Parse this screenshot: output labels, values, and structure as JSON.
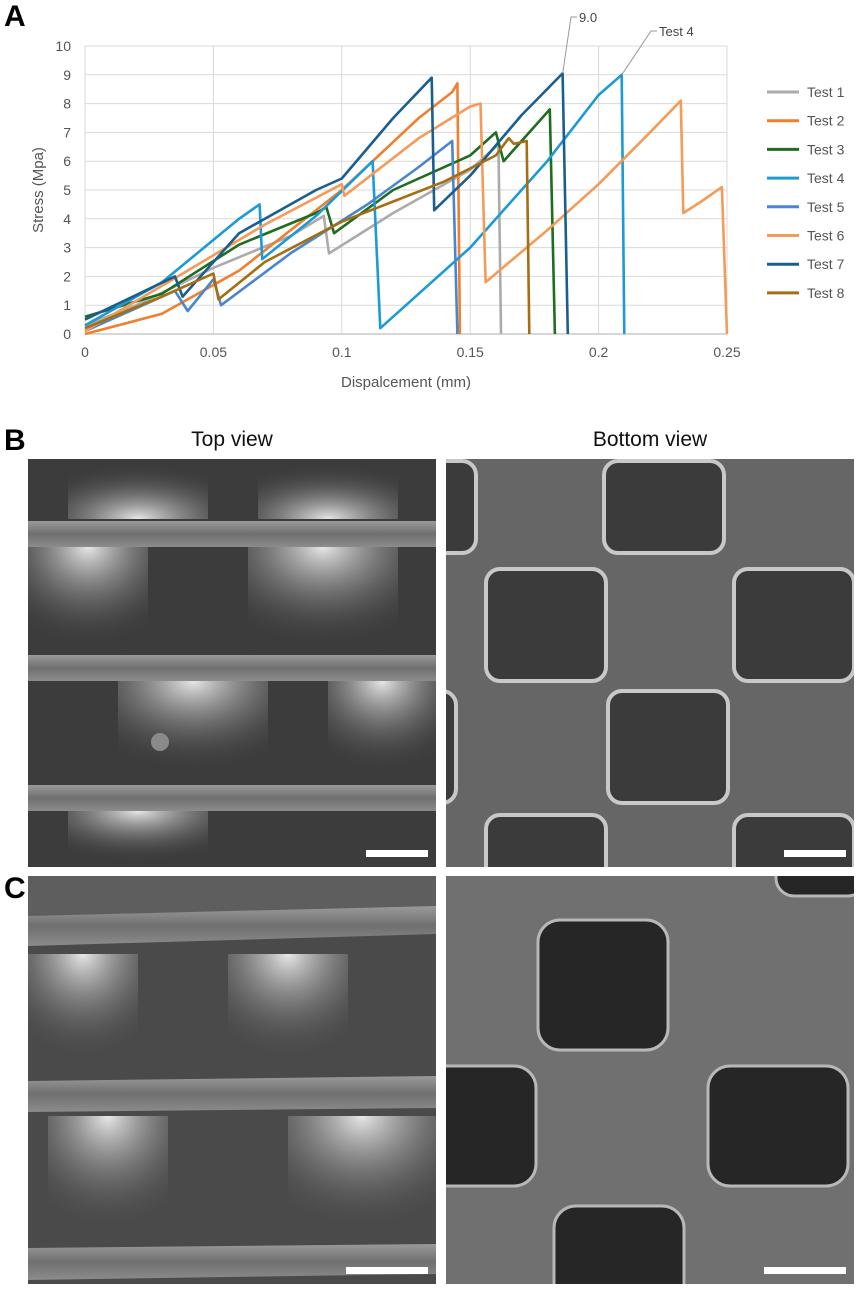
{
  "panels": {
    "a": "A",
    "b": "B",
    "c": "C"
  },
  "views": {
    "top": "Top view",
    "bottom": "Bottom view"
  },
  "chart_data": {
    "type": "line",
    "xlabel": "Dispalcement (mm)",
    "ylabel": "Stress (Mpa)",
    "xlim": [
      0,
      0.25
    ],
    "ylim": [
      0,
      10
    ],
    "xticks": [
      0,
      0.05,
      0.1,
      0.15,
      0.2,
      0.25
    ],
    "xtick_labels": [
      "0",
      "0.05",
      "0.1",
      "0.15",
      "0.2",
      "0.25"
    ],
    "yticks": [
      0,
      1,
      2,
      3,
      4,
      5,
      6,
      7,
      8,
      9,
      10
    ],
    "ytick_labels": [
      "0",
      "1",
      "2",
      "3",
      "4",
      "5",
      "6",
      "7",
      "8",
      "9",
      "10"
    ],
    "grid": true,
    "legend_position": "right",
    "annotations": [
      {
        "text": "9.0",
        "x": 0.186,
        "y": 9.05
      },
      {
        "text": "Test 4",
        "x": 0.209,
        "y": 9.0
      }
    ],
    "series": [
      {
        "name": "Test 1",
        "color": "#ababab",
        "points": [
          [
            0,
            0.3
          ],
          [
            0.02,
            1.0
          ],
          [
            0.05,
            2.3
          ],
          [
            0.08,
            3.4
          ],
          [
            0.093,
            4.1
          ],
          [
            0.095,
            2.8
          ],
          [
            0.12,
            4.2
          ],
          [
            0.15,
            5.7
          ],
          [
            0.16,
            6.5
          ],
          [
            0.161,
            6.7
          ],
          [
            0.162,
            0
          ]
        ]
      },
      {
        "name": "Test 2",
        "color": "#f07f2f",
        "points": [
          [
            0,
            0
          ],
          [
            0.03,
            0.7
          ],
          [
            0.06,
            2.2
          ],
          [
            0.1,
            5.0
          ],
          [
            0.13,
            7.5
          ],
          [
            0.143,
            8.4
          ],
          [
            0.145,
            8.7
          ],
          [
            0.146,
            0
          ]
        ]
      },
      {
        "name": "Test 3",
        "color": "#1f6d1f",
        "points": [
          [
            0,
            0.6
          ],
          [
            0.03,
            1.4
          ],
          [
            0.06,
            3.1
          ],
          [
            0.09,
            4.2
          ],
          [
            0.094,
            4.4
          ],
          [
            0.097,
            3.5
          ],
          [
            0.12,
            5.0
          ],
          [
            0.15,
            6.2
          ],
          [
            0.16,
            7.0
          ],
          [
            0.163,
            6.0
          ],
          [
            0.175,
            7.2
          ],
          [
            0.181,
            7.8
          ],
          [
            0.183,
            0
          ]
        ]
      },
      {
        "name": "Test 4",
        "color": "#1d9ad6",
        "points": [
          [
            0,
            0.3
          ],
          [
            0.03,
            1.8
          ],
          [
            0.06,
            4.0
          ],
          [
            0.068,
            4.5
          ],
          [
            0.069,
            2.6
          ],
          [
            0.09,
            4.1
          ],
          [
            0.112,
            6.0
          ],
          [
            0.115,
            0.2
          ],
          [
            0.15,
            3.0
          ],
          [
            0.18,
            6.0
          ],
          [
            0.2,
            8.3
          ],
          [
            0.209,
            9.0
          ],
          [
            0.21,
            0
          ]
        ]
      },
      {
        "name": "Test 5",
        "color": "#4a86d0",
        "points": [
          [
            0,
            0.1
          ],
          [
            0.035,
            1.5
          ],
          [
            0.04,
            0.8
          ],
          [
            0.05,
            1.9
          ],
          [
            0.053,
            1.0
          ],
          [
            0.08,
            2.8
          ],
          [
            0.11,
            4.5
          ],
          [
            0.13,
            5.8
          ],
          [
            0.143,
            6.7
          ],
          [
            0.145,
            0
          ]
        ]
      },
      {
        "name": "Test 6",
        "color": "#f59a57",
        "points": [
          [
            0,
            0.1
          ],
          [
            0.04,
            2.2
          ],
          [
            0.07,
            3.8
          ],
          [
            0.1,
            5.2
          ],
          [
            0.101,
            4.8
          ],
          [
            0.13,
            6.8
          ],
          [
            0.15,
            7.9
          ],
          [
            0.154,
            8.0
          ],
          [
            0.156,
            1.8
          ],
          [
            0.18,
            3.6
          ],
          [
            0.2,
            5.2
          ],
          [
            0.22,
            7.0
          ],
          [
            0.232,
            8.1
          ],
          [
            0.233,
            4.2
          ],
          [
            0.24,
            4.6
          ],
          [
            0.248,
            5.1
          ],
          [
            0.25,
            0
          ]
        ]
      },
      {
        "name": "Test 7",
        "color": "#1a5e8e",
        "points": [
          [
            0,
            0.5
          ],
          [
            0.035,
            2.0
          ],
          [
            0.038,
            1.3
          ],
          [
            0.06,
            3.5
          ],
          [
            0.09,
            5.0
          ],
          [
            0.1,
            5.4
          ],
          [
            0.12,
            7.5
          ],
          [
            0.135,
            8.9
          ],
          [
            0.136,
            4.3
          ],
          [
            0.15,
            5.5
          ],
          [
            0.17,
            7.6
          ],
          [
            0.186,
            9.05
          ],
          [
            0.188,
            0
          ]
        ]
      },
      {
        "name": "Test 8",
        "color": "#a66e12",
        "points": [
          [
            0,
            0.2
          ],
          [
            0.03,
            1.3
          ],
          [
            0.05,
            2.1
          ],
          [
            0.052,
            1.2
          ],
          [
            0.07,
            2.5
          ],
          [
            0.1,
            3.9
          ],
          [
            0.12,
            4.6
          ],
          [
            0.14,
            5.3
          ],
          [
            0.16,
            6.2
          ],
          [
            0.165,
            6.8
          ],
          [
            0.167,
            6.6
          ],
          [
            0.172,
            6.7
          ],
          [
            0.173,
            0
          ]
        ]
      }
    ]
  }
}
